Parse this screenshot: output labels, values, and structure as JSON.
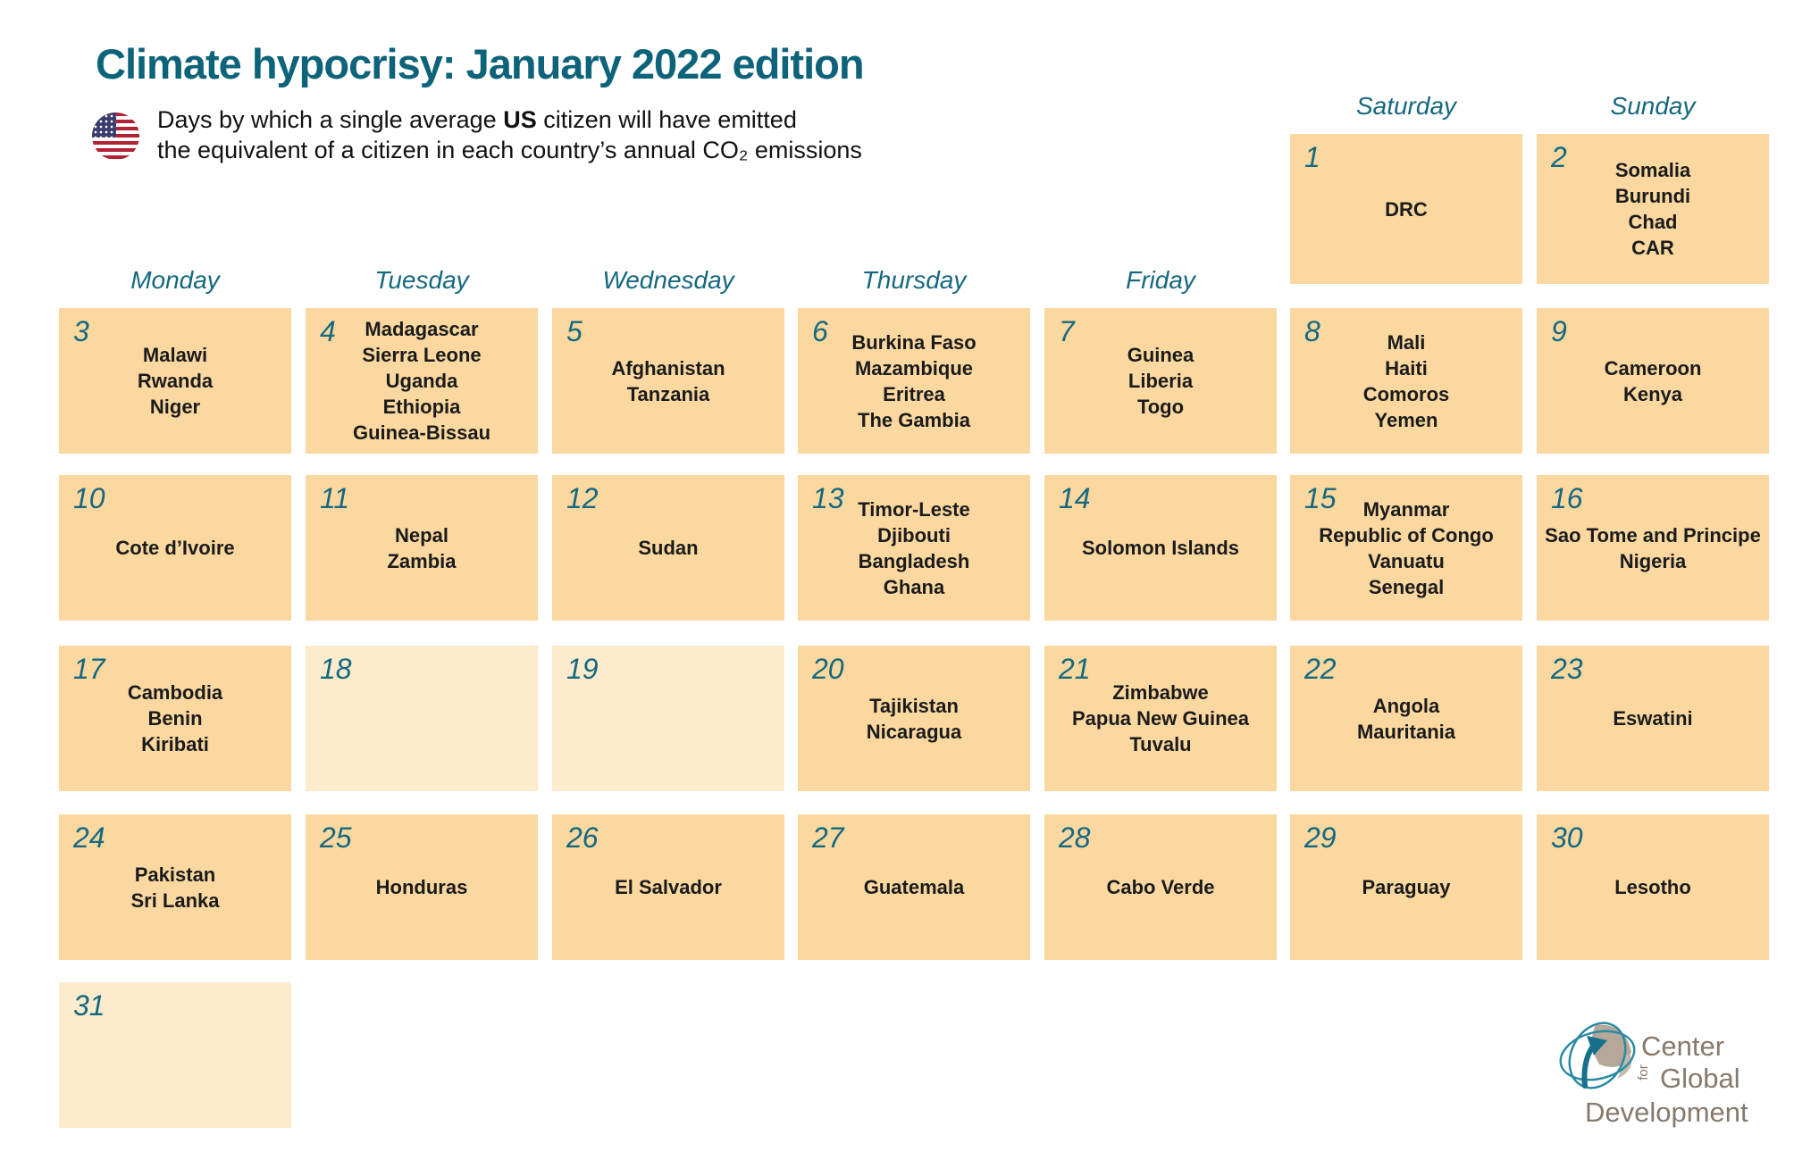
{
  "title": "Climate hypocrisy: January 2022 edition",
  "subtitle": {
    "prefix": "Days by which a single average ",
    "emphasis": "US",
    "suffix": " citizen will have emitted",
    "line2": "the equivalent of a citizen in each country’s annual CO₂ emissions"
  },
  "icons": {
    "flag": "us-flag-icon",
    "logo_globe": "cgd-globe-icon"
  },
  "weekdays_top": [
    "Saturday",
    "Sunday"
  ],
  "weekdays_main": [
    "Monday",
    "Tuesday",
    "Wednesday",
    "Thursday",
    "Friday"
  ],
  "chart_data": {
    "type": "table",
    "title": "Climate hypocrisy: January 2022 edition",
    "month": "January 2022",
    "days": [
      {
        "day": 1,
        "countries": [
          "DRC"
        ]
      },
      {
        "day": 2,
        "countries": [
          "Somalia",
          "Burundi",
          "Chad",
          "CAR"
        ]
      },
      {
        "day": 3,
        "countries": [
          "Malawi",
          "Rwanda",
          "Niger"
        ]
      },
      {
        "day": 4,
        "countries": [
          "Madagascar",
          "Sierra Leone",
          "Uganda",
          "Ethiopia",
          "Guinea-Bissau"
        ]
      },
      {
        "day": 5,
        "countries": [
          "Afghanistan",
          "Tanzania"
        ]
      },
      {
        "day": 6,
        "countries": [
          "Burkina Faso",
          "Mazambique",
          "Eritrea",
          "The Gambia"
        ]
      },
      {
        "day": 7,
        "countries": [
          "Guinea",
          "Liberia",
          "Togo"
        ]
      },
      {
        "day": 8,
        "countries": [
          "Mali",
          "Haiti",
          "Comoros",
          "Yemen"
        ]
      },
      {
        "day": 9,
        "countries": [
          "Cameroon",
          "Kenya"
        ]
      },
      {
        "day": 10,
        "countries": [
          "Cote d’Ivoire"
        ]
      },
      {
        "day": 11,
        "countries": [
          "Nepal",
          "Zambia"
        ]
      },
      {
        "day": 12,
        "countries": [
          "Sudan"
        ]
      },
      {
        "day": 13,
        "countries": [
          "Timor-Leste",
          "Djibouti",
          "Bangladesh",
          "Ghana"
        ]
      },
      {
        "day": 14,
        "countries": [
          "Solomon Islands"
        ]
      },
      {
        "day": 15,
        "countries": [
          "Myanmar",
          "Republic of Congo",
          "Vanuatu",
          "Senegal"
        ]
      },
      {
        "day": 16,
        "countries": [
          "Sao Tome and Principe",
          "Nigeria"
        ]
      },
      {
        "day": 17,
        "countries": [
          "Cambodia",
          "Benin",
          "Kiribati"
        ]
      },
      {
        "day": 18,
        "countries": []
      },
      {
        "day": 19,
        "countries": []
      },
      {
        "day": 20,
        "countries": [
          "Tajikistan",
          "Nicaragua"
        ]
      },
      {
        "day": 21,
        "countries": [
          "Zimbabwe",
          "Papua New Guinea",
          "Tuvalu"
        ]
      },
      {
        "day": 22,
        "countries": [
          "Angola",
          "Mauritania"
        ]
      },
      {
        "day": 23,
        "countries": [
          "Eswatini"
        ]
      },
      {
        "day": 24,
        "countries": [
          "Pakistan",
          "Sri Lanka"
        ]
      },
      {
        "day": 25,
        "countries": [
          "Honduras"
        ]
      },
      {
        "day": 26,
        "countries": [
          "El Salvador"
        ]
      },
      {
        "day": 27,
        "countries": [
          "Guatemala"
        ]
      },
      {
        "day": 28,
        "countries": [
          "Cabo Verde"
        ]
      },
      {
        "day": 29,
        "countries": [
          "Paraguay"
        ]
      },
      {
        "day": 30,
        "countries": [
          "Lesotho"
        ]
      },
      {
        "day": 31,
        "countries": []
      }
    ]
  },
  "logo": {
    "line1": "Center",
    "line2_small": "for",
    "line2": "Global",
    "line3": "Development"
  },
  "colors": {
    "teal": "#15687F",
    "title_teal": "#0D6379",
    "cell_filled": "#FAD8A0",
    "cell_empty": "#FCEBCC",
    "country_text": "#1B1B1B",
    "logo_gray": "#87796C"
  }
}
